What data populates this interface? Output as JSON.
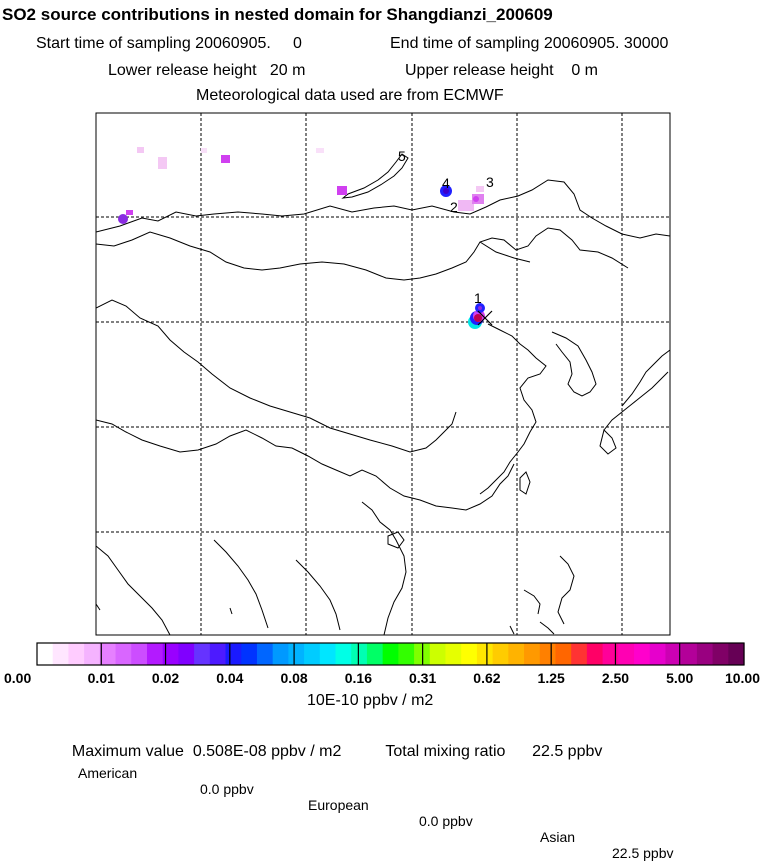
{
  "header": {
    "title": "SO2 source contributions in nested domain for Shangdianzi_200609",
    "start_time": "Start time of sampling 20060905.     0",
    "end_time": "End time of sampling 20060905. 30000",
    "lower_release": "Lower release height   20 m",
    "upper_release": "Upper release height    0 m",
    "met_data": "Meteorological data used are from ECMWF"
  },
  "map": {
    "receptor_labels": [
      "1",
      "2",
      "3",
      "4",
      "5"
    ],
    "plume_colors": {
      "light_pink": "#f4c8f4",
      "magenta": "#d040f0",
      "purple": "#8a2be2",
      "blue": "#2020ff",
      "dark": "#400040"
    }
  },
  "colorbar": {
    "colors": [
      "#ffffff",
      "#ffe6ff",
      "#ffccff",
      "#f5b3ff",
      "#e680ff",
      "#d966ff",
      "#cc4dff",
      "#b31aff",
      "#9900ff",
      "#8000ff",
      "#6633ff",
      "#4d1aff",
      "#1a1aff",
      "#0033ff",
      "#0066ff",
      "#0099ff",
      "#00b3ff",
      "#00ccff",
      "#00e6ff",
      "#00ffe6",
      "#00ffb3",
      "#00ff66",
      "#00ff00",
      "#33ff00",
      "#80ff00",
      "#ccff00",
      "#e6ff00",
      "#ffff00",
      "#ffe600",
      "#ffcc00",
      "#ffb300",
      "#ff9900",
      "#ff8000",
      "#ff6600",
      "#ff3333",
      "#ff0066",
      "#ff0099",
      "#ff00b3",
      "#ff00cc",
      "#e600cc",
      "#cc00b3",
      "#b30099",
      "#990080",
      "#800066",
      "#660055"
    ],
    "ticks": [
      "0.00",
      "0.01",
      "0.02",
      "0.04",
      "0.08",
      "0.16",
      "0.31",
      "0.62",
      "1.25",
      "2.50",
      "5.00",
      "10.00"
    ],
    "unit": "10E-10 ppbv / m2"
  },
  "summary": {
    "max_value": "Maximum value  0.508E-08 ppbv / m2",
    "total_mixing": "Total mixing ratio      22.5 ppbv",
    "american_label": "American",
    "american_value": "0.0 ppbv",
    "european_label": "European",
    "european_value": "0.0 ppbv",
    "asian_label": "Asian",
    "asian_value": "22.5 ppbv"
  }
}
